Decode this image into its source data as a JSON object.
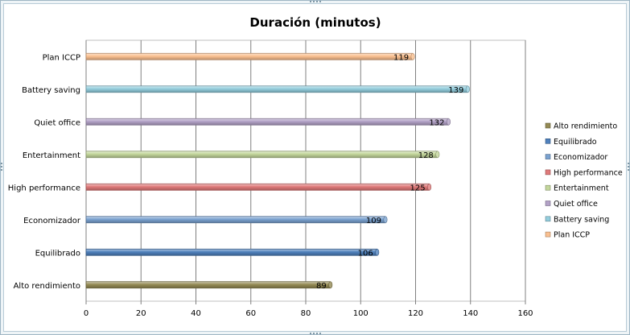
{
  "chart_data": {
    "type": "bar",
    "orientation": "horizontal",
    "title": "Duración (minutos)",
    "categories": [
      "Alto rendimiento",
      "Equilibrado",
      "Economizador",
      "High performance",
      "Entertainment",
      "Quiet office",
      "Battery saving",
      "Plan ICCP"
    ],
    "values": [
      89,
      106,
      109,
      125,
      128,
      132,
      139,
      119
    ],
    "colors": [
      "#948a54",
      "#4f81bd",
      "#7aa2d0",
      "#e07a7a",
      "#c3d69b",
      "#b3a2c7",
      "#93cddd",
      "#fac090"
    ],
    "xlim": [
      0,
      160
    ],
    "xticks": [
      0,
      20,
      40,
      60,
      80,
      100,
      120,
      140,
      160
    ],
    "grid": "vertical",
    "legend": {
      "position": "right",
      "entries": [
        "Alto rendimiento",
        "Equilibrado",
        "Economizador",
        "High performance",
        "Entertainment",
        "Quiet office",
        "Battery saving",
        "Plan ICCP"
      ]
    }
  }
}
